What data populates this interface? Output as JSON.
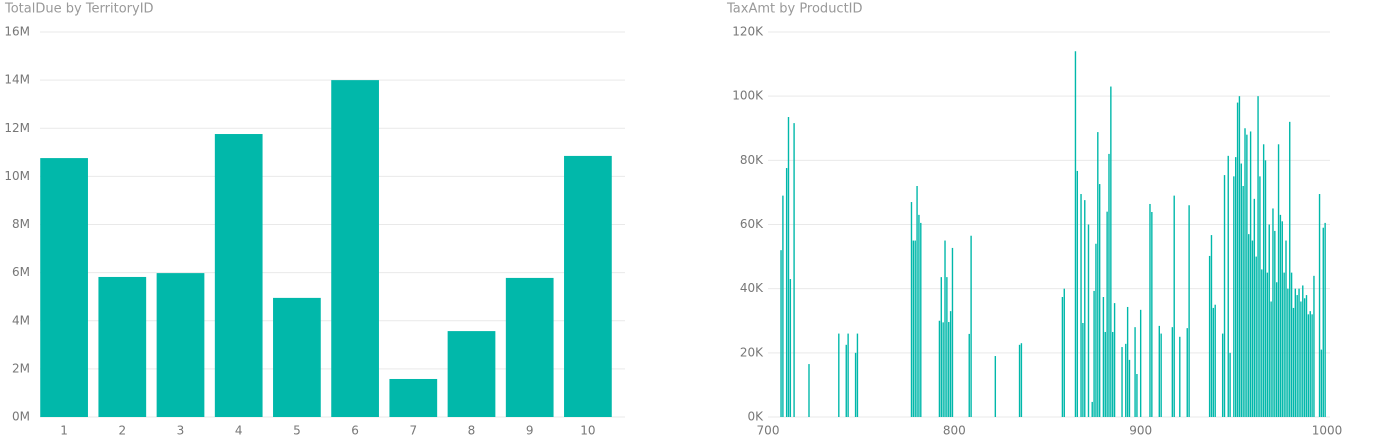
{
  "chart_data": [
    {
      "type": "bar",
      "title": "TotalDue by TerritoryID",
      "categories": [
        "1",
        "2",
        "3",
        "4",
        "5",
        "6",
        "7",
        "8",
        "9",
        "10"
      ],
      "values": [
        10760000,
        5820000,
        5980000,
        11760000,
        4950000,
        14000000,
        1580000,
        3570000,
        5780000,
        10850000
      ],
      "color": "#01b8aa",
      "ylim": [
        0,
        16000000
      ],
      "yticks": [
        {
          "value": 0,
          "label": "0M"
        },
        {
          "value": 2000000,
          "label": "2M"
        },
        {
          "value": 4000000,
          "label": "4M"
        },
        {
          "value": 6000000,
          "label": "6M"
        },
        {
          "value": 8000000,
          "label": "8M"
        },
        {
          "value": 10000000,
          "label": "10M"
        },
        {
          "value": 12000000,
          "label": "12M"
        },
        {
          "value": 14000000,
          "label": "14M"
        },
        {
          "value": 16000000,
          "label": "16M"
        }
      ],
      "grid": true
    },
    {
      "type": "bar",
      "title": "TaxAmt by ProductID",
      "x": [
        707,
        708,
        710,
        711,
        712,
        714,
        722,
        738,
        742,
        743,
        747,
        748,
        777,
        778,
        779,
        780,
        781,
        782,
        792,
        793,
        794,
        795,
        796,
        797,
        798,
        799,
        808,
        809,
        822,
        835,
        836,
        858,
        859,
        865,
        866,
        868,
        869,
        870,
        872,
        874,
        875,
        876,
        877,
        878,
        880,
        881,
        882,
        883,
        884,
        885,
        886,
        890,
        892,
        893,
        894,
        897,
        898,
        900,
        905,
        906,
        910,
        911,
        917,
        918,
        921,
        925,
        926,
        937,
        938,
        939,
        940,
        944,
        945,
        947,
        948,
        950,
        951,
        952,
        953,
        954,
        955,
        956,
        957,
        958,
        959,
        960,
        961,
        962,
        963,
        964,
        965,
        966,
        967,
        968,
        969,
        970,
        971,
        972,
        973,
        974,
        975,
        976,
        977,
        978,
        979,
        980,
        981,
        982,
        983,
        984,
        985,
        986,
        987,
        988,
        989,
        990,
        991,
        992,
        993,
        996,
        997,
        998,
        999
      ],
      "values": [
        52000,
        69000,
        77600,
        93500,
        43000,
        91600,
        16500,
        26000,
        22500,
        26000,
        20000,
        26000,
        67000,
        55000,
        55000,
        72000,
        63000,
        60500,
        30000,
        43600,
        29500,
        55000,
        43600,
        29600,
        33000,
        52700,
        25900,
        56500,
        19000,
        22500,
        23000,
        37400,
        40000,
        114000,
        76700,
        69500,
        29300,
        67600,
        60000,
        4700,
        39300,
        54000,
        88800,
        72600,
        37400,
        26500,
        64000,
        82000,
        103000,
        26500,
        35500,
        21800,
        22800,
        34300,
        17800,
        28000,
        13400,
        33400,
        66400,
        63900,
        28400,
        26000,
        28000,
        69000,
        25000,
        27700,
        66000,
        50200,
        56700,
        34000,
        35000,
        26000,
        75400,
        81400,
        20000,
        75000,
        81000,
        98000,
        100000,
        79000,
        72000,
        90000,
        88000,
        57000,
        89000,
        55000,
        68000,
        50000,
        100000,
        75000,
        46000,
        85000,
        80000,
        45000,
        60000,
        36000,
        65000,
        58000,
        42000,
        85000,
        63000,
        61000,
        45000,
        55000,
        40000,
        92000,
        45000,
        34000,
        40000,
        38000,
        40000,
        36000,
        41000,
        37000,
        38000,
        32000,
        33000,
        32000,
        44000,
        69500,
        21000,
        59000,
        60500
      ],
      "color": "#01b8aa",
      "xlim": [
        700,
        1000
      ],
      "xticks": [
        700,
        800,
        900,
        1000
      ],
      "ylim": [
        0,
        120000
      ],
      "yticks": [
        {
          "value": 0,
          "label": "0K"
        },
        {
          "value": 20000,
          "label": "20K"
        },
        {
          "value": 40000,
          "label": "40K"
        },
        {
          "value": 60000,
          "label": "60K"
        },
        {
          "value": 80000,
          "label": "80K"
        },
        {
          "value": 100000,
          "label": "100K"
        },
        {
          "value": 120000,
          "label": "120K"
        }
      ],
      "grid": true
    }
  ]
}
